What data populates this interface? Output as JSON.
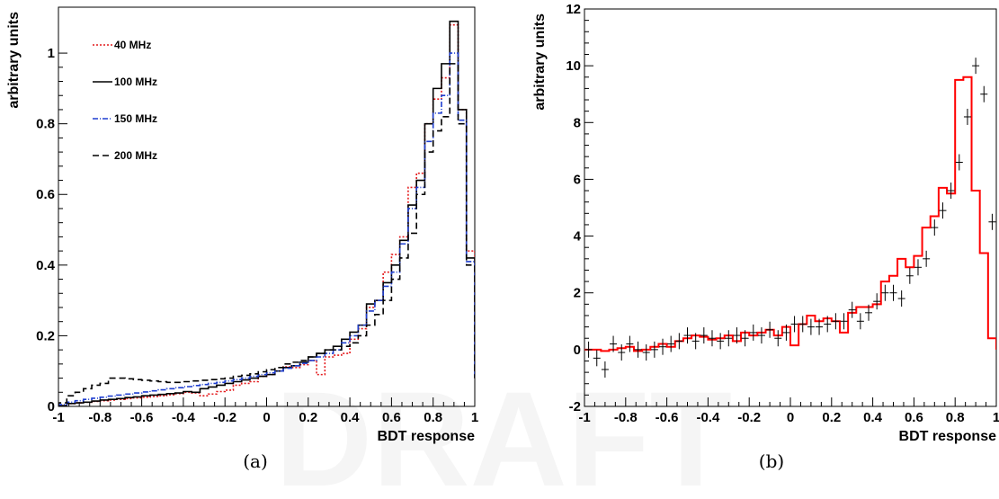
{
  "watermark": "DRAFT",
  "chart_data": [
    {
      "type": "line",
      "caption": "(a)",
      "xlabel": "BDT response",
      "ylabel": "arbitrary units",
      "xlim": [
        -1,
        1
      ],
      "ylim": [
        0,
        1.13
      ],
      "x_ticks": [
        "-1",
        "-0.8",
        "-0.6",
        "-0.4",
        "-0.2",
        "0",
        "0.2",
        "0.4",
        "0.6",
        "0.8",
        "1"
      ],
      "y_ticks": [
        "0",
        "0.2",
        "0.4",
        "0.6",
        "0.8",
        "1"
      ],
      "legend_position": "top-left",
      "bin_edges": [
        -1.0,
        -0.96,
        -0.92,
        -0.88,
        -0.84,
        -0.8,
        -0.76,
        -0.72,
        -0.68,
        -0.64,
        -0.6,
        -0.56,
        -0.52,
        -0.48,
        -0.44,
        -0.4,
        -0.36,
        -0.32,
        -0.28,
        -0.24,
        -0.2,
        -0.16,
        -0.12,
        -0.08,
        -0.04,
        0.0,
        0.04,
        0.08,
        0.12,
        0.16,
        0.2,
        0.24,
        0.28,
        0.32,
        0.36,
        0.4,
        0.44,
        0.48,
        0.52,
        0.56,
        0.6,
        0.64,
        0.68,
        0.72,
        0.76,
        0.8,
        0.84,
        0.88,
        0.92,
        0.96,
        1.0
      ],
      "series": [
        {
          "name": "40 MHz",
          "color": "#e41a1c",
          "style": "dotted",
          "values": [
            0.002,
            0.008,
            0.01,
            0.012,
            0.014,
            0.016,
            0.018,
            0.02,
            0.022,
            0.024,
            0.026,
            0.028,
            0.03,
            0.033,
            0.036,
            0.04,
            0.038,
            0.03,
            0.035,
            0.042,
            0.046,
            0.06,
            0.065,
            0.07,
            0.085,
            0.09,
            0.1,
            0.112,
            0.11,
            0.118,
            0.13,
            0.09,
            0.14,
            0.145,
            0.15,
            0.19,
            0.22,
            0.28,
            0.3,
            0.38,
            0.43,
            0.48,
            0.62,
            0.66,
            0.8,
            0.87,
            0.93,
            1.08,
            0.84,
            0.44
          ]
        },
        {
          "name": "100 MHz",
          "color": "#000000",
          "style": "solid",
          "values": [
            0.002,
            0.008,
            0.01,
            0.012,
            0.015,
            0.018,
            0.02,
            0.022,
            0.025,
            0.027,
            0.03,
            0.032,
            0.034,
            0.036,
            0.038,
            0.042,
            0.04,
            0.05,
            0.055,
            0.06,
            0.065,
            0.07,
            0.075,
            0.08,
            0.085,
            0.09,
            0.1,
            0.11,
            0.115,
            0.125,
            0.14,
            0.15,
            0.16,
            0.17,
            0.19,
            0.21,
            0.23,
            0.29,
            0.3,
            0.35,
            0.4,
            0.47,
            0.57,
            0.64,
            0.8,
            0.9,
            0.97,
            1.09,
            0.84,
            0.42
          ]
        },
        {
          "name": "150 MHz",
          "color": "#1f3fd0",
          "style": "dashdot",
          "values": [
            0.005,
            0.012,
            0.016,
            0.02,
            0.023,
            0.026,
            0.029,
            0.032,
            0.035,
            0.038,
            0.041,
            0.044,
            0.047,
            0.05,
            0.053,
            0.056,
            0.059,
            0.062,
            0.065,
            0.068,
            0.072,
            0.076,
            0.08,
            0.085,
            0.09,
            0.095,
            0.1,
            0.108,
            0.115,
            0.122,
            0.13,
            0.14,
            0.15,
            0.16,
            0.18,
            0.2,
            0.23,
            0.27,
            0.3,
            0.34,
            0.38,
            0.46,
            0.56,
            0.62,
            0.75,
            0.83,
            0.88,
            1.0,
            0.81,
            0.41
          ]
        },
        {
          "name": "200 MHz",
          "color": "#000000",
          "style": "dashed",
          "values": [
            0.01,
            0.03,
            0.04,
            0.05,
            0.06,
            0.065,
            0.08,
            0.08,
            0.078,
            0.076,
            0.074,
            0.072,
            0.07,
            0.068,
            0.068,
            0.07,
            0.072,
            0.074,
            0.076,
            0.078,
            0.08,
            0.085,
            0.088,
            0.092,
            0.098,
            0.104,
            0.11,
            0.12,
            0.125,
            0.13,
            0.14,
            0.15,
            0.16,
            0.16,
            0.17,
            0.18,
            0.2,
            0.23,
            0.26,
            0.3,
            0.36,
            0.42,
            0.49,
            0.6,
            0.72,
            0.78,
            0.82,
            0.97,
            0.8,
            0.4
          ]
        }
      ]
    },
    {
      "type": "line",
      "caption": "(b)",
      "xlabel": "BDT response",
      "ylabel": "arbitrary units",
      "xlim": [
        -1,
        1
      ],
      "ylim": [
        -2,
        12
      ],
      "x_ticks": [
        "-1",
        "-0.8",
        "-0.6",
        "-0.4",
        "-0.2",
        "0",
        "0.2",
        "0.4",
        "0.6",
        "0.8",
        "1"
      ],
      "y_ticks": [
        "-2",
        "0",
        "2",
        "4",
        "6",
        "8",
        "10",
        "12"
      ],
      "bin_edges": [
        -1.0,
        -0.96,
        -0.92,
        -0.88,
        -0.84,
        -0.8,
        -0.76,
        -0.72,
        -0.68,
        -0.64,
        -0.6,
        -0.56,
        -0.52,
        -0.48,
        -0.44,
        -0.4,
        -0.36,
        -0.32,
        -0.28,
        -0.24,
        -0.2,
        -0.16,
        -0.12,
        -0.08,
        -0.04,
        0.0,
        0.04,
        0.08,
        0.12,
        0.16,
        0.2,
        0.24,
        0.28,
        0.32,
        0.36,
        0.4,
        0.44,
        0.48,
        0.52,
        0.56,
        0.6,
        0.64,
        0.68,
        0.72,
        0.76,
        0.8,
        0.84,
        0.88,
        0.92,
        0.96,
        1.0
      ],
      "series": [
        {
          "color": "#ff0000",
          "style": "histogram",
          "values": [
            0.0,
            0.0,
            -0.05,
            0.0,
            0.05,
            0.1,
            -0.05,
            0.0,
            0.1,
            0.2,
            0.1,
            0.3,
            0.4,
            0.5,
            0.45,
            0.35,
            0.4,
            0.5,
            0.3,
            0.6,
            0.5,
            0.6,
            0.7,
            0.5,
            0.8,
            0.15,
            0.9,
            1.2,
            1.0,
            1.1,
            1.0,
            0.6,
            1.3,
            1.5,
            1.5,
            1.6,
            2.4,
            2.6,
            3.2,
            2.9,
            3.3,
            4.3,
            4.7,
            5.7,
            5.5,
            9.5,
            9.6,
            5.6,
            3.4,
            0.4
          ]
        },
        {
          "style": "points",
          "color": "#000000",
          "values": [
            0.0,
            -0.3,
            -0.7,
            0.2,
            -0.1,
            0.2,
            0.0,
            -0.1,
            0.0,
            0.1,
            0.2,
            0.3,
            0.5,
            0.3,
            0.5,
            0.4,
            0.3,
            0.4,
            0.5,
            0.4,
            0.6,
            0.5,
            0.7,
            0.4,
            0.6,
            0.9,
            0.9,
            0.8,
            0.8,
            0.9,
            1.0,
            1.0,
            1.4,
            1.0,
            1.3,
            1.7,
            2.0,
            2.0,
            1.8,
            2.6,
            2.9,
            3.2,
            4.3,
            4.9,
            5.6,
            6.6,
            8.2,
            10.0,
            9.0,
            4.5
          ]
        }
      ]
    }
  ]
}
